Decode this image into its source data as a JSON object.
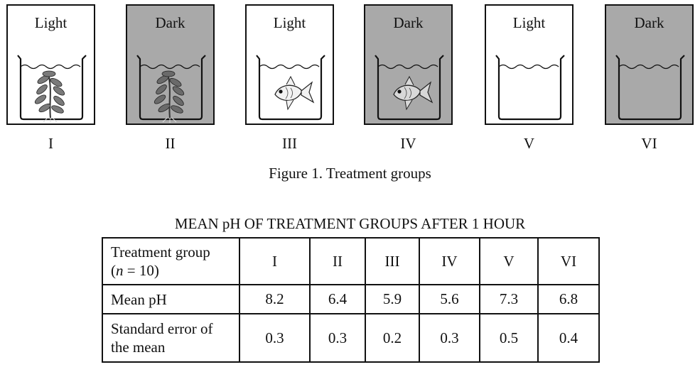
{
  "figure": {
    "panels": [
      {
        "condition": "Light",
        "label": "I",
        "contents": "aquatic plant",
        "shade": "light"
      },
      {
        "condition": "Dark",
        "label": "II",
        "contents": "aquatic plant",
        "shade": "dark"
      },
      {
        "condition": "Light",
        "label": "III",
        "contents": "goldfish",
        "shade": "light"
      },
      {
        "condition": "Dark",
        "label": "IV",
        "contents": "goldfish",
        "shade": "dark"
      },
      {
        "condition": "Light",
        "label": "V",
        "contents": "water only",
        "shade": "light"
      },
      {
        "condition": "Dark",
        "label": "VI",
        "contents": "water only",
        "shade": "dark"
      }
    ],
    "caption": "Figure 1. Treatment groups",
    "colors": {
      "dark_background": "#a9a9a9",
      "outline": "#111111"
    }
  },
  "table": {
    "title": "MEAN pH OF TREATMENT GROUPS AFTER 1 HOUR",
    "header": {
      "label_line1": "Treatment group",
      "label_n_prefix": "(",
      "label_n_var": "n",
      "label_n_suffix": " = 10)",
      "groups": [
        "I",
        "II",
        "III",
        "IV",
        "V",
        "VI"
      ]
    },
    "rows": [
      {
        "label": "Mean pH",
        "values": [
          "8.2",
          "6.4",
          "5.9",
          "5.6",
          "7.3",
          "6.8"
        ]
      },
      {
        "label_line1": "Standard error of",
        "label_line2": "the mean",
        "values": [
          "0.3",
          "0.3",
          "0.2",
          "0.3",
          "0.5",
          "0.4"
        ]
      }
    ]
  }
}
